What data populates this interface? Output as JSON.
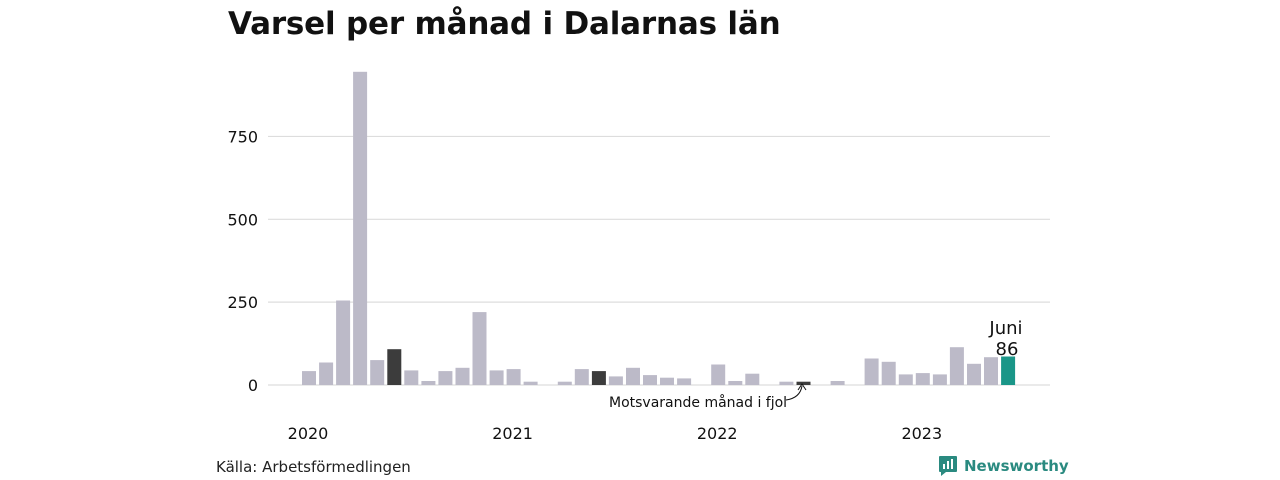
{
  "title": "Varsel per månad i Dalarnas län",
  "source": "Källa: Arbetsförmedlingen",
  "brand": {
    "name": "Newsworthy",
    "icon": "newsworthy-logo-icon",
    "color": "#2a8a80"
  },
  "colors": {
    "bar": "#bcbac8",
    "prior_year": "#3c3c3c",
    "current": "#1a9688",
    "grid": "#dddddd"
  },
  "annotation": {
    "text": "Motsvarande månad i fjol"
  },
  "highlight": {
    "month": "Juni",
    "value": "86"
  },
  "chart_data": {
    "type": "bar",
    "title": "Varsel per månad i Dalarnas län",
    "ylim": [
      0,
      960
    ],
    "yticks": [
      0,
      250,
      500,
      750
    ],
    "xtick_labels": [
      "2020",
      "2021",
      "2022",
      "2023"
    ],
    "grid": true,
    "categories": [
      "2020-01",
      "2020-02",
      "2020-03",
      "2020-04",
      "2020-05",
      "2020-06",
      "2020-07",
      "2020-08",
      "2020-09",
      "2020-10",
      "2020-11",
      "2020-12",
      "2021-01",
      "2021-02",
      "2021-03",
      "2021-04",
      "2021-05",
      "2021-06",
      "2021-07",
      "2021-08",
      "2021-09",
      "2021-10",
      "2021-11",
      "2021-12",
      "2022-01",
      "2022-02",
      "2022-03",
      "2022-04",
      "2022-05",
      "2022-06",
      "2022-07",
      "2022-08",
      "2022-09",
      "2022-10",
      "2022-11",
      "2022-12",
      "2023-01",
      "2023-02",
      "2023-03",
      "2023-04",
      "2023-05",
      "2023-06"
    ],
    "values": [
      42,
      68,
      255,
      945,
      75,
      108,
      44,
      12,
      42,
      52,
      220,
      44,
      48,
      10,
      0,
      10,
      48,
      42,
      26,
      52,
      30,
      22,
      20,
      0,
      62,
      12,
      34,
      0,
      10,
      10,
      0,
      12,
      0,
      80,
      70,
      32,
      36,
      32,
      114,
      64,
      84,
      86
    ],
    "prior_year_indices": [
      5,
      17,
      29
    ],
    "current_index": 41
  }
}
